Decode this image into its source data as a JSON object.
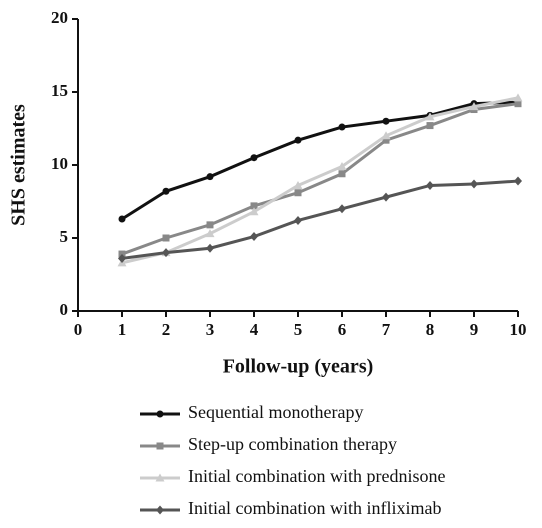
{
  "chart_data": {
    "type": "line",
    "x_label": "Follow-up (years)",
    "y_label": "SHS estimates",
    "x": [
      1,
      2,
      3,
      4,
      5,
      6,
      7,
      8,
      9,
      10
    ],
    "series": [
      {
        "name": "Sequential monotherapy",
        "color": "#111111",
        "marker": "circle",
        "values": [
          6.3,
          8.2,
          9.2,
          10.5,
          11.7,
          12.6,
          13.0,
          13.4,
          14.2,
          14.3
        ]
      },
      {
        "name": "Step-up combination therapy",
        "color": "#888888",
        "marker": "square",
        "values": [
          3.9,
          5.0,
          5.9,
          7.2,
          8.1,
          9.4,
          11.7,
          12.7,
          13.8,
          14.2
        ]
      },
      {
        "name": "Initial combination with prednisone",
        "color": "#cccccc",
        "marker": "triangle",
        "values": [
          3.3,
          4.0,
          5.3,
          6.8,
          8.6,
          9.9,
          12.0,
          13.3,
          14.0,
          14.6
        ]
      },
      {
        "name": "Initial combination with infliximab",
        "color": "#555555",
        "marker": "diamond",
        "values": [
          3.6,
          4.0,
          4.3,
          5.1,
          6.2,
          7.0,
          7.8,
          8.6,
          8.7,
          8.9
        ]
      }
    ],
    "xlim": [
      0,
      10
    ],
    "xticks": [
      0,
      1,
      2,
      3,
      4,
      5,
      6,
      7,
      8,
      9,
      10
    ],
    "ylim": [
      0,
      20
    ],
    "yticks": [
      0,
      5,
      10,
      15,
      20
    ]
  }
}
